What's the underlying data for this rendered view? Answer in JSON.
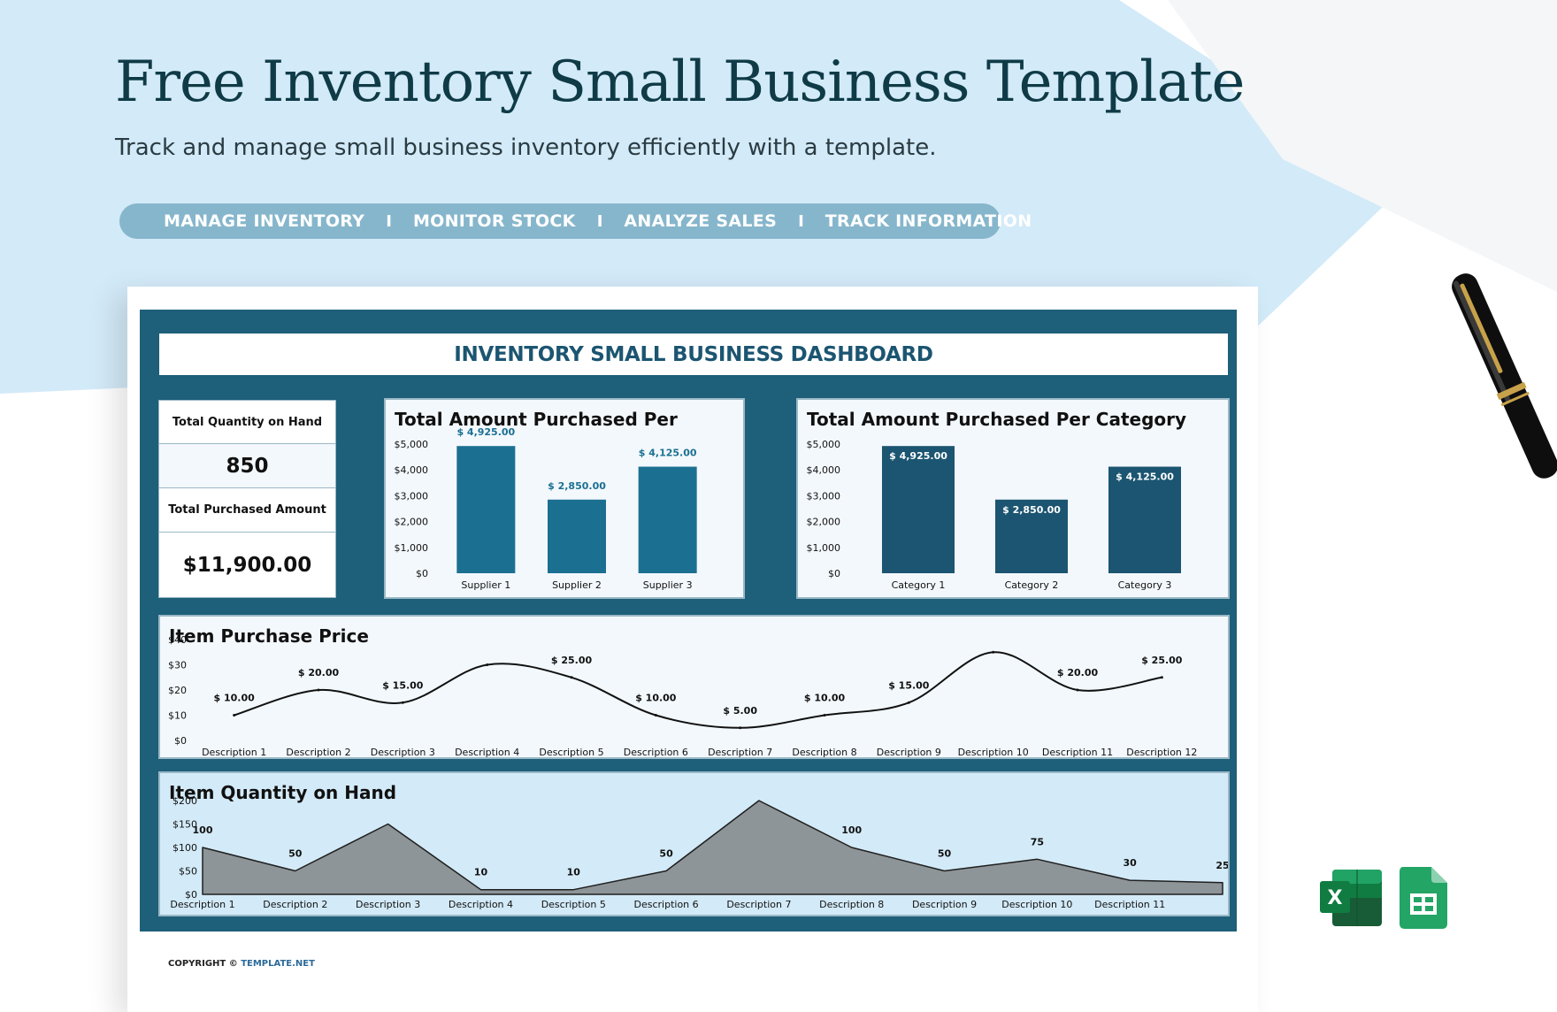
{
  "promo": {
    "title": "Free Inventory Small Business Template",
    "subtitle": "Track and manage small business inventory efficiently with a template.",
    "features": [
      "MANAGE INVENTORY",
      "MONITOR STOCK",
      "ANALYZE SALES",
      "TRACK INFORMATION"
    ],
    "separator": "I",
    "copyright_label": "COPYRIGHT ©",
    "copyright_brand": "TEMPLATE.NET",
    "icons": [
      "excel-icon",
      "google-sheets-icon",
      "pen-icon"
    ],
    "excel_glyph": "X"
  },
  "dashboard": {
    "banner": "INVENTORY SMALL BUSINESS DASHBOARD",
    "kpis": {
      "qty_label": "Total Quantity on Hand",
      "qty_value": "850",
      "amount_label": "Total Purchased Amount",
      "amount_value": "$11,900.00"
    }
  },
  "colors": {
    "dashboard_frame": "#1e5f79",
    "supplier_bar": "#1b7092",
    "category_bar": "#1b5571",
    "light_blue_bg": "#d3eaf8",
    "area_fill": "#8e9598",
    "pill": "#86b6cc"
  },
  "chart_data": [
    {
      "id": "supplier",
      "type": "bar",
      "title": "Total Amount Purchased Per",
      "categories": [
        "Supplier 1",
        "Supplier 2",
        "Supplier 3"
      ],
      "values": [
        4925,
        2850,
        4125
      ],
      "data_labels": [
        "$ 4,925.00",
        "$ 2,850.00",
        "$ 4,125.00"
      ],
      "yticks": [
        "$0",
        "$1,000",
        "$2,000",
        "$3,000",
        "$4,000",
        "$5,000"
      ],
      "ylim": [
        0,
        5000
      ]
    },
    {
      "id": "category",
      "type": "bar",
      "title": "Total Amount Purchased Per Category",
      "categories": [
        "Category 1",
        "Category 2",
        "Category 3"
      ],
      "values": [
        4925,
        2850,
        4125
      ],
      "data_labels": [
        "$ 4,925.00",
        "$ 2,850.00",
        "$ 4,125.00"
      ],
      "yticks": [
        "$0",
        "$1,000",
        "$2,000",
        "$3,000",
        "$4,000",
        "$5,000"
      ],
      "ylim": [
        0,
        5000
      ]
    },
    {
      "id": "price",
      "type": "line",
      "title": "Item Purchase Price",
      "categories": [
        "Description 1",
        "Description 2",
        "Description 3",
        "Description 4",
        "Description 5",
        "Description 6",
        "Description 7",
        "Description 8",
        "Description 9",
        "Description 10",
        "Description 11",
        "Description 12"
      ],
      "values": [
        10,
        20,
        15,
        30,
        25,
        10,
        5,
        10,
        15,
        35,
        20,
        25
      ],
      "data_labels": [
        "$ 10.00",
        "$ 20.00",
        "$ 15.00",
        "",
        "$ 25.00",
        "$ 10.00",
        "$ 5.00",
        "$ 10.00",
        "$ 15.00",
        "",
        "$ 20.00",
        "$ 25.00"
      ],
      "yticks": [
        "$0",
        "$10",
        "$20",
        "$30",
        "$40"
      ],
      "ylim": [
        0,
        40
      ],
      "smooth": true
    },
    {
      "id": "quantity",
      "type": "area",
      "title": "Item Quantity on Hand",
      "categories": [
        "Description 1",
        "Description 2",
        "Description 3",
        "Description 4",
        "Description 5",
        "Description 6",
        "Description 7",
        "Description 8",
        "Description 9",
        "Description 10",
        "Description 11",
        ""
      ],
      "values": [
        100,
        50,
        150,
        10,
        10,
        50,
        200,
        100,
        50,
        75,
        30,
        25
      ],
      "data_labels": [
        "100",
        "50",
        "",
        "10",
        "10",
        "50",
        "",
        "100",
        "50",
        "75",
        "30",
        "25"
      ],
      "yticks": [
        "$0",
        "$50",
        "$100",
        "$150",
        "$200"
      ],
      "ylim": [
        0,
        200
      ]
    }
  ]
}
